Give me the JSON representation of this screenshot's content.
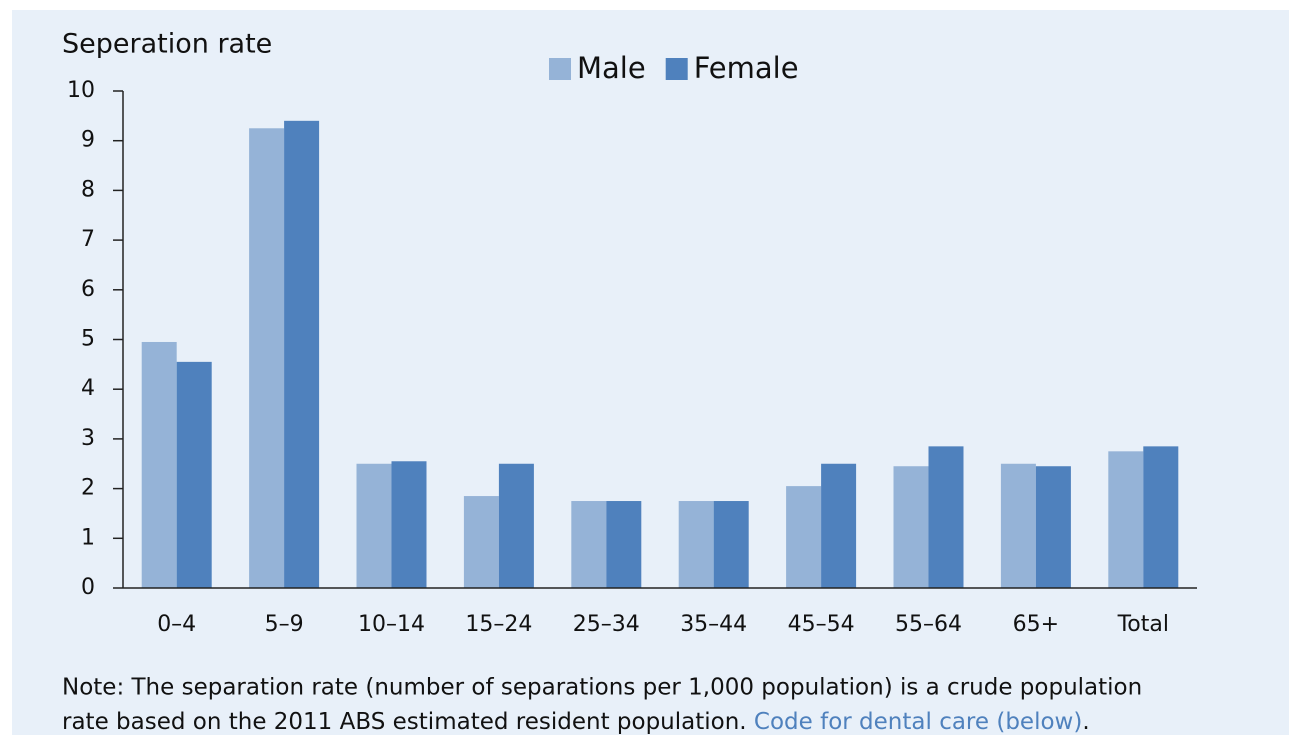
{
  "chart_data": {
    "type": "bar",
    "title": "Seperation rate",
    "categories": [
      "0–4",
      "5–9",
      "10–14",
      "15–24",
      "25–34",
      "35–44",
      "45–54",
      "55–64",
      "65+",
      "Total"
    ],
    "series": [
      {
        "name": "Male",
        "color": "#95b3d7",
        "values": [
          4.95,
          9.25,
          2.5,
          1.85,
          1.75,
          1.75,
          2.05,
          2.45,
          2.5,
          2.75
        ]
      },
      {
        "name": "Female",
        "color": "#4f81bd",
        "values": [
          4.55,
          9.4,
          2.55,
          2.5,
          1.75,
          1.75,
          2.5,
          2.85,
          2.45,
          2.85
        ]
      }
    ],
    "ylim": [
      0,
      10
    ],
    "yticks": [
      0,
      1,
      2,
      3,
      4,
      5,
      6,
      7,
      8,
      9,
      10
    ],
    "legend": "top",
    "note": {
      "line1": "Note: The separation rate (number of separations per 1,000 population) is a crude population",
      "line2": "rate based on the 2011 ABS estimated resident population.",
      "link": "Code for dental care (below)",
      "end": "."
    }
  }
}
